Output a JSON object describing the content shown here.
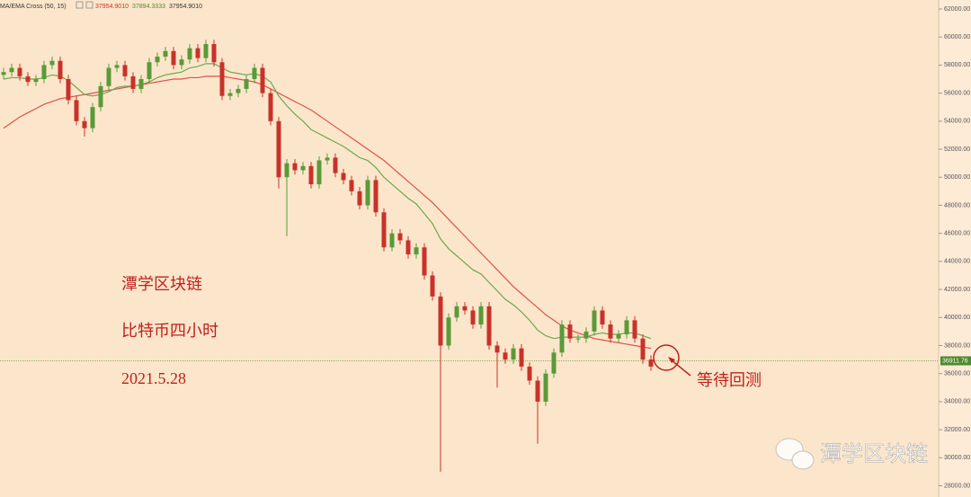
{
  "chart_data": {
    "type": "candlestick",
    "header": {
      "indicator": "MA/EMA Cross (50, 15)",
      "values": [
        "37954.9010",
        "37894.3333",
        "37954.9010"
      ]
    },
    "annotations": [
      "潭学区块链",
      "比特币四小时",
      "2021.5.28",
      "等待回测"
    ],
    "watermark": "潭学区块链",
    "ylim": [
      27200,
      62640
    ],
    "yticks": [
      {
        "value": 62000,
        "label": "62000.00"
      },
      {
        "value": 60000,
        "label": "60000.00"
      },
      {
        "value": 58000,
        "label": "58000.00"
      },
      {
        "value": 56000,
        "label": "56000.00"
      },
      {
        "value": 54000,
        "label": "54000.00"
      },
      {
        "value": 52000,
        "label": "52000.00"
      },
      {
        "value": 50000,
        "label": "50000.00"
      },
      {
        "value": 48000,
        "label": "48000.00"
      },
      {
        "value": 46000,
        "label": "46000.00"
      },
      {
        "value": 44000,
        "label": "44000.00"
      },
      {
        "value": 42000,
        "label": "42000.00"
      },
      {
        "value": 40000,
        "label": "40000.00"
      },
      {
        "value": 38000,
        "label": "38000.00"
      },
      {
        "value": 36000,
        "label": "36000.00"
      },
      {
        "value": 34000,
        "label": "34000.00"
      },
      {
        "value": 32000,
        "label": "32000.00"
      },
      {
        "value": 30000,
        "label": "30000.00"
      },
      {
        "value": 28000,
        "label": "28000.00"
      }
    ],
    "current_price": 36911.76,
    "up_color": "#5a9a38",
    "down_color": "#c8322a",
    "open": [
      57300,
      57500,
      57800,
      57200,
      56800,
      57000,
      58000,
      58300,
      57000,
      55500,
      54000,
      53500,
      55000,
      56500,
      57800,
      58000,
      57200,
      56300,
      57000,
      58200,
      58600,
      59000,
      58000,
      58400,
      59200,
      58500,
      59500,
      58200,
      55800,
      56000,
      56300,
      57000,
      57800,
      56000,
      54000,
      50000,
      51000,
      50500,
      50800,
      49500,
      51200,
      51400,
      50300,
      49800,
      49000,
      48000,
      49800,
      47500,
      45000,
      46000,
      45500,
      44500,
      45000,
      43000,
      41500,
      38000,
      40000,
      40800,
      40500,
      39500,
      40800,
      38000,
      37500,
      37000,
      37800,
      36500,
      35500,
      34000,
      36000,
      37500,
      39500,
      38500,
      38500,
      39000,
      40500,
      39500,
      38500,
      38800,
      39800,
      38500,
      37000
    ],
    "high": [
      57800,
      58100,
      58100,
      57500,
      57300,
      58300,
      58600,
      58600,
      57300,
      55800,
      54300,
      55300,
      56800,
      58100,
      58300,
      58300,
      57500,
      57300,
      58500,
      58900,
      59300,
      59300,
      58700,
      59500,
      59500,
      59800,
      59800,
      58500,
      56300,
      56600,
      57300,
      58100,
      58100,
      56300,
      54300,
      51300,
      51300,
      51100,
      51100,
      51500,
      51700,
      51700,
      50600,
      50100,
      49300,
      50100,
      50100,
      47800,
      46300,
      46300,
      45800,
      45300,
      45300,
      43300,
      41800,
      40300,
      41100,
      41100,
      40800,
      41100,
      41100,
      38300,
      37800,
      38100,
      38100,
      36800,
      35800,
      36300,
      37800,
      39800,
      39800,
      38800,
      39300,
      40800,
      40800,
      39800,
      39100,
      40100,
      40100,
      38800,
      37300
    ],
    "low": [
      57000,
      57200,
      56900,
      56500,
      56500,
      56700,
      57700,
      56700,
      55200,
      53700,
      52900,
      53200,
      54700,
      56200,
      57500,
      56900,
      56000,
      56000,
      56700,
      57900,
      58300,
      57700,
      57700,
      58100,
      58200,
      58200,
      57900,
      55500,
      55500,
      55700,
      56000,
      56700,
      55700,
      53700,
      49200,
      45800,
      50200,
      50200,
      49200,
      49200,
      50900,
      50000,
      49500,
      48700,
      47700,
      47700,
      47200,
      44700,
      44700,
      45200,
      44200,
      44200,
      42700,
      41200,
      29000,
      37700,
      39700,
      40200,
      39200,
      39200,
      37700,
      35000,
      36700,
      36700,
      36200,
      35200,
      31000,
      33700,
      35700,
      37200,
      38200,
      38200,
      38200,
      38700,
      39200,
      38200,
      38200,
      38500,
      38200,
      36700,
      36200
    ],
    "close": [
      57500,
      57800,
      57200,
      56800,
      57000,
      58000,
      58300,
      57000,
      55500,
      54000,
      53500,
      55000,
      56500,
      57800,
      58000,
      57200,
      56300,
      57000,
      58200,
      58600,
      59000,
      58000,
      58400,
      59200,
      58500,
      59500,
      58200,
      55800,
      56000,
      56300,
      57000,
      57800,
      56000,
      54000,
      50000,
      51000,
      50500,
      50800,
      49500,
      51200,
      51400,
      50300,
      49800,
      49000,
      48000,
      49800,
      47500,
      45000,
      46000,
      45500,
      44500,
      45000,
      43000,
      41500,
      38000,
      40000,
      40800,
      40500,
      39500,
      40800,
      38000,
      37500,
      37000,
      37800,
      36500,
      35500,
      34000,
      36000,
      37500,
      39500,
      38500,
      38500,
      39000,
      40500,
      39500,
      38500,
      38800,
      39800,
      38500,
      37000,
      36500
    ],
    "series": [
      {
        "color": "#e0504a",
        "values": [
          53500,
          53900,
          54300,
          54600,
          54900,
          55200,
          55400,
          55600,
          55700,
          55800,
          55900,
          56000,
          56100,
          56200,
          56300,
          56400,
          56500,
          56600,
          56700,
          56800,
          56900,
          57000,
          57000,
          57100,
          57100,
          57200,
          57200,
          57200,
          57100,
          57000,
          56900,
          56800,
          56600,
          56300,
          56000,
          55700,
          55400,
          55100,
          54800,
          54400,
          54000,
          53600,
          53200,
          52800,
          52400,
          52000,
          51600,
          51200,
          50700,
          50200,
          49700,
          49200,
          48700,
          48200,
          47600,
          47000,
          46400,
          45800,
          45200,
          44600,
          44000,
          43400,
          42800,
          42200,
          41700,
          41200,
          40700,
          40200,
          39800,
          39400,
          39100,
          38900,
          38700,
          38500,
          38400,
          38300,
          38200,
          38100,
          38000,
          37900,
          37800
        ]
      },
      {
        "color": "#6aa84f",
        "values": [
          57000,
          57100,
          57100,
          57000,
          57000,
          57100,
          57300,
          57200,
          56900,
          56400,
          55900,
          55800,
          55900,
          56100,
          56400,
          56500,
          56500,
          56600,
          56800,
          57100,
          57300,
          57400,
          57500,
          57800,
          57900,
          58100,
          58100,
          57800,
          57500,
          57400,
          57300,
          57400,
          57200,
          56800,
          55800,
          55100,
          54500,
          54000,
          53400,
          53100,
          52800,
          52500,
          52200,
          51800,
          51400,
          51200,
          50700,
          50000,
          49500,
          49000,
          48500,
          48100,
          47400,
          46700,
          45600,
          44900,
          44400,
          43900,
          43400,
          43100,
          42500,
          41900,
          41300,
          40900,
          40400,
          39800,
          39100,
          38700,
          38500,
          38600,
          38600,
          38600,
          38600,
          38800,
          38900,
          38800,
          38800,
          38900,
          38900,
          38700,
          38500
        ]
      }
    ]
  }
}
